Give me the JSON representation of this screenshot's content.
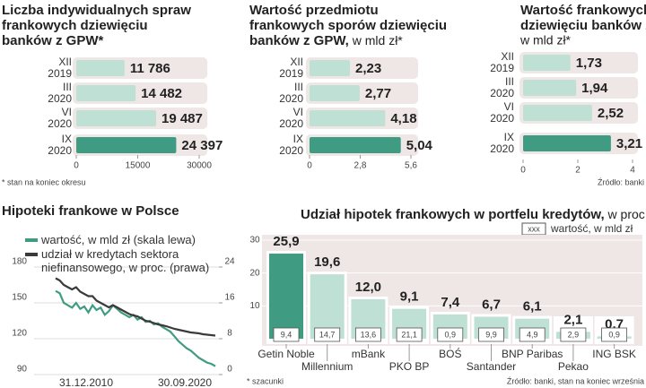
{
  "chart_data": [
    {
      "type": "bar",
      "orientation": "horizontal",
      "title": [
        "Liczba indywidualnych spraw",
        "frankowych dziewięciu",
        "banków z GPW*"
      ],
      "categories": [
        [
          "XII",
          "2019"
        ],
        [
          "III",
          "2020"
        ],
        [
          "VI",
          "2020"
        ],
        [
          "IX",
          "2020"
        ]
      ],
      "values": [
        11786,
        14482,
        19487,
        24397
      ],
      "value_labels": [
        "11 786",
        "14 482",
        "19 487",
        "24 397"
      ],
      "colors": [
        "#bfe0d4",
        "#bfe0d4",
        "#bfe0d4",
        "#3f9c82"
      ],
      "xlim": [
        0,
        32000
      ],
      "xticks": [
        0,
        15000,
        30000
      ],
      "note": "* stan na koniec okresu"
    },
    {
      "type": "bar",
      "orientation": "horizontal",
      "title": [
        "Wartość przedmiotu",
        "frankowych sporów dziewięciu",
        "banków z GPW,"
      ],
      "subtitle": " w mld zł*",
      "categories": [
        [
          "XII",
          "2019"
        ],
        [
          "III",
          "2020"
        ],
        [
          "VI",
          "2020"
        ],
        [
          "IX",
          "2020"
        ]
      ],
      "values": [
        2.23,
        2.77,
        4.18,
        5.04
      ],
      "value_labels": [
        "2,23",
        "2,77",
        "4,18",
        "5,04"
      ],
      "colors": [
        "#bfe0d4",
        "#bfe0d4",
        "#bfe0d4",
        "#3f9c82"
      ],
      "xlim": [
        0,
        6
      ],
      "xticks": [
        0,
        {
          "value": 2.8,
          "label": "2,8"
        },
        {
          "value": 5.6,
          "label": "5,6"
        }
      ]
    },
    {
      "type": "bar",
      "orientation": "horizontal",
      "title": [
        "Wartość frankowych rezerw",
        "dziewięciu banków z GPW"
      ],
      "subtitle": "w mld zł*",
      "categories": [
        [
          "XII",
          "2019"
        ],
        [
          "III",
          "2020"
        ],
        [
          "VI",
          "2020"
        ],
        [
          "IX",
          "2020"
        ]
      ],
      "values": [
        1.73,
        1.94,
        2.52,
        3.21
      ],
      "value_labels": [
        "1,73",
        "1,94",
        "2,52",
        "3,21"
      ],
      "colors": [
        "#bfe0d4",
        "#bfe0d4",
        "#bfe0d4",
        "#3f9c82"
      ],
      "xlim": [
        0,
        4.2
      ],
      "xticks": [
        0,
        2,
        4
      ],
      "source": "Źródło: banki"
    },
    {
      "type": "line",
      "title": "Hipoteki frankowe w Polsce",
      "x": [
        "31.12.2010",
        null,
        null,
        null,
        null,
        null,
        null,
        null,
        null,
        null,
        null,
        null,
        null,
        null,
        null,
        null,
        null,
        null,
        null,
        null,
        null,
        null,
        null,
        null,
        null,
        null,
        null,
        null,
        null,
        null,
        null,
        null,
        null,
        null,
        null,
        null,
        null,
        null,
        null,
        "30.09.2020"
      ],
      "series": [
        {
          "name": "wartość, w mld zł (skala lewa)",
          "color": "#3f9c82",
          "values": [
            160,
            158,
            150,
            148,
            146,
            150,
            145,
            147,
            142,
            148,
            144,
            146,
            140,
            143,
            148,
            145,
            142,
            140,
            138,
            140,
            136,
            138,
            134,
            135,
            132,
            133,
            130,
            128,
            126,
            122,
            118,
            115,
            112,
            110,
            107,
            104,
            102,
            100,
            99,
            97
          ]
        },
        {
          "name": "udział w kredytach sektora niefinansowego, w proc. (prawa)",
          "color": "#3a3a3a",
          "axis": "y2",
          "values": [
            21.5,
            21,
            20,
            19.5,
            19,
            19.5,
            18.5,
            18,
            17.5,
            17.5,
            16.5,
            16,
            15.5,
            15,
            15.5,
            15,
            14.5,
            14,
            13.5,
            13.2,
            13,
            12.5,
            12,
            11.8,
            11.5,
            11.2,
            11,
            10.8,
            10.5,
            10.2,
            10,
            9.8,
            9.6,
            9.4,
            9.3,
            9.2,
            9,
            8.9,
            8.8,
            8.7
          ]
        }
      ],
      "ylim": [
        90,
        180
      ],
      "yticks": [
        90,
        120,
        150,
        180
      ],
      "y2lim": [
        0,
        24
      ],
      "y2ticks": [
        0,
        8,
        16,
        24
      ],
      "grid": true
    },
    {
      "type": "bar",
      "title": "Udział hipotek frankowych w portfelu kredytów,",
      "subtitle": " w proc.",
      "legend_key": "xxx",
      "legend_text": "wartość, w mld zł",
      "categories": [
        "Getin Noble",
        "Millennium",
        "mBank",
        "PKO BP",
        "BOŚ",
        "Santander",
        "BNP Paribas",
        "Pekao",
        "ING BSK"
      ],
      "values": [
        25.9,
        19.6,
        12.0,
        9.1,
        7.4,
        6.7,
        6.1,
        2.1,
        0.7
      ],
      "value_labels": [
        "25,9",
        "19,6",
        "12,0",
        "9,1",
        "7,4",
        "6,7",
        "6,1",
        "2,1",
        "0,7"
      ],
      "amounts": [
        "9,4",
        "14,7",
        "13,6",
        "21,1",
        "0,9",
        "9,9",
        "4,9",
        "2,9",
        "0,9"
      ],
      "colors": [
        "#3f9c82",
        "#bfe0d4",
        "#bfe0d4",
        "#bfe0d4",
        "#bfe0d4",
        "#bfe0d4",
        "#bfe0d4",
        "#bfe0d4",
        "#bfe0d4"
      ],
      "ylim": [
        0,
        30
      ],
      "yticks": [
        10,
        20,
        30
      ],
      "note": "* szacunki",
      "source": "Źródło: banki, stan na koniec września"
    }
  ]
}
